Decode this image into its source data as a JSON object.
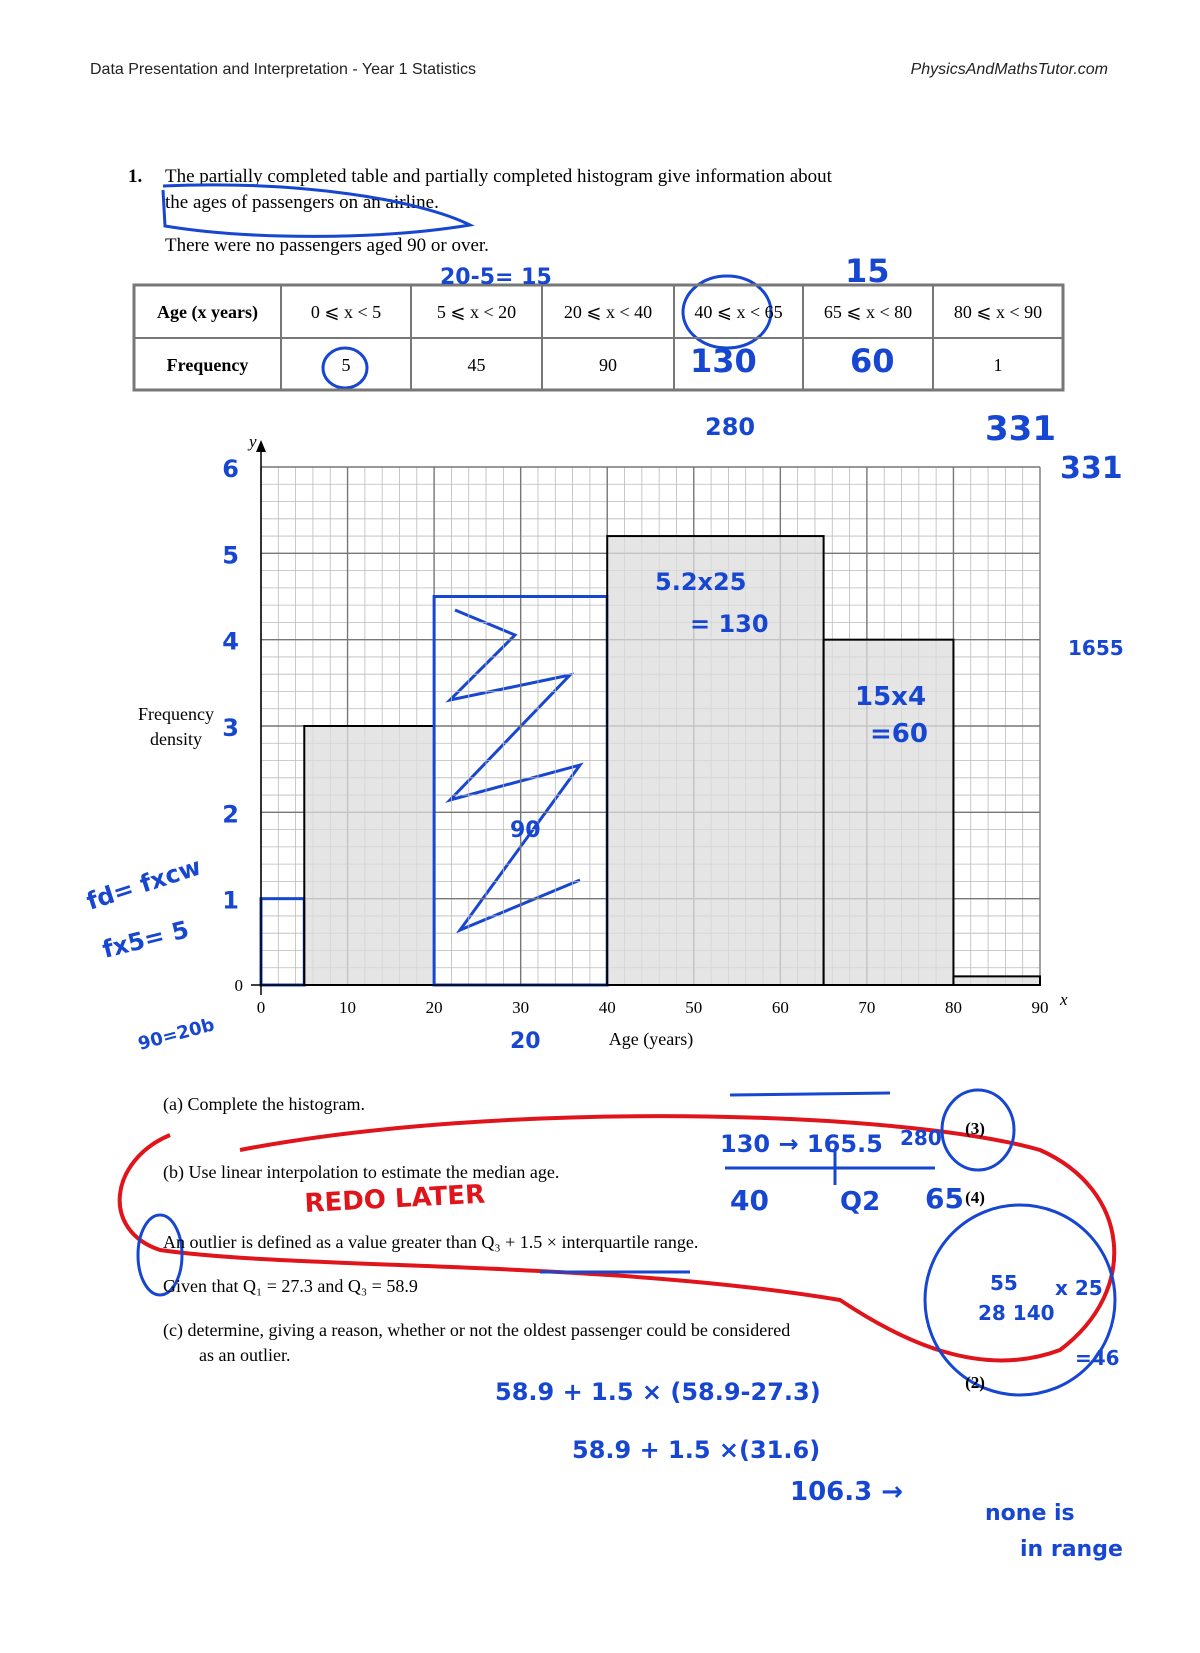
{
  "header": {
    "title": "Data Presentation and Interpretation  - Year 1 Statistics",
    "site": "PhysicsAndMathsTutor.com"
  },
  "question": {
    "number": "1.",
    "intro": [
      "The partially completed table and partially completed histogram give information about",
      "the ages of passengers on an airline."
    ],
    "note": "There were no passengers aged 90 or over."
  },
  "table": {
    "headers": [
      "Age (x years)",
      "0 ⩽ x < 5",
      "5 ⩽ x < 20",
      "20 ⩽ x < 40",
      "40 ⩽ x < 65",
      "65 ⩽ x < 80",
      "80 ⩽ x < 90"
    ],
    "rows": [
      [
        "Frequency",
        "5",
        "45",
        "90",
        null,
        null,
        "1"
      ]
    ]
  },
  "histogram": {
    "y_label": [
      "Frequency",
      "density"
    ],
    "x_label": "Age (years)",
    "y_letter": "y",
    "x_letter": "x",
    "xlim": [
      0,
      90
    ],
    "ylim": [
      0,
      6
    ],
    "xticks": [
      0,
      10,
      20,
      30,
      40,
      50,
      60,
      70,
      80,
      90
    ],
    "yticks": [
      0
    ],
    "hand_yticks": [
      1,
      2,
      3,
      4,
      5,
      6
    ],
    "hand_color": "#1746d1",
    "grid": true,
    "bars": [
      {
        "x": [
          0,
          5
        ],
        "density": 1,
        "fill": "none",
        "stroke": "#1746d1"
      },
      {
        "x": [
          5,
          20
        ],
        "density": 3,
        "fill": "#dcdcdc",
        "stroke": "#000000"
      },
      {
        "x": [
          20,
          40
        ],
        "density": 4.5,
        "fill": "none",
        "stroke": "#1746d1"
      },
      {
        "x": [
          40,
          65
        ],
        "density": 5.2,
        "fill": "#dcdcdc",
        "stroke": "#000000"
      },
      {
        "x": [
          65,
          80
        ],
        "density": 4,
        "fill": "#dcdcdc",
        "stroke": "#000000"
      },
      {
        "x": [
          80,
          90
        ],
        "density": 0.1,
        "fill": "#dcdcdc",
        "stroke": "#000000"
      }
    ]
  },
  "parts": [
    {
      "text": "(a)  Complete the histogram.",
      "marks": "(3)"
    },
    {
      "text": "(b)  Use linear interpolation to estimate the median age.",
      "marks": "(4)"
    },
    {
      "text": "An outlier is defined as a value greater than Q₃ + 1.5 × interquartile range."
    },
    {
      "text": "Given that Q₁ = 27.3 and Q₃ = 58.9"
    },
    {
      "text": "(c)  determine, giving a reason, whether or not the oldest passenger could be considered",
      "text2": "as an outlier.",
      "marks": "(2)"
    }
  ],
  "annotations": [
    {
      "text": "20-5= 15",
      "color": "#1746d1"
    },
    {
      "text": "15",
      "color": "#1746d1"
    },
    {
      "text": "130",
      "color": "#1746d1"
    },
    {
      "text": "60",
      "color": "#1746d1"
    },
    {
      "text": "280",
      "color": "#1746d1"
    },
    {
      "text": "331",
      "color": "#1746d1"
    },
    {
      "text": "331",
      "color": "#1746d1"
    },
    {
      "text": "1655",
      "color": "#1746d1"
    },
    {
      "text": "5.2x25",
      "color": "#1746d1"
    },
    {
      "text": "= 130",
      "color": "#1746d1"
    },
    {
      "text": "15x4",
      "color": "#1746d1"
    },
    {
      "text": "=60",
      "color": "#1746d1"
    },
    {
      "text": "90",
      "color": "#1746d1"
    },
    {
      "text": "fd= fxcw",
      "color": "#1746d1"
    },
    {
      "text": "fx5= 5",
      "color": "#1746d1"
    },
    {
      "text": "90=20b",
      "color": "#1746d1"
    },
    {
      "text": "20",
      "color": "#1746d1"
    },
    {
      "text": "130 → 165.5",
      "color": "#1746d1"
    },
    {
      "text": "280",
      "color": "#1746d1"
    },
    {
      "text": "40",
      "color": "#1746d1"
    },
    {
      "text": "Q2",
      "color": "#1746d1"
    },
    {
      "text": "65",
      "color": "#1746d1"
    },
    {
      "text": "REDO LATER",
      "color": "#e0141b"
    },
    {
      "text": "55",
      "color": "#1746d1"
    },
    {
      "text": "x 25",
      "color": "#1746d1"
    },
    {
      "text": "28 140",
      "color": "#1746d1"
    },
    {
      "text": "=46",
      "color": "#1746d1"
    },
    {
      "text": "58.9 + 1.5 × (58.9-27.3)",
      "color": "#1746d1"
    },
    {
      "text": "58.9 + 1.5 ×(31.6)",
      "color": "#1746d1"
    },
    {
      "text": "106.3 →",
      "color": "#1746d1"
    },
    {
      "text": "none is",
      "color": "#1746d1"
    },
    {
      "text": "in range",
      "color": "#1746d1"
    }
  ]
}
